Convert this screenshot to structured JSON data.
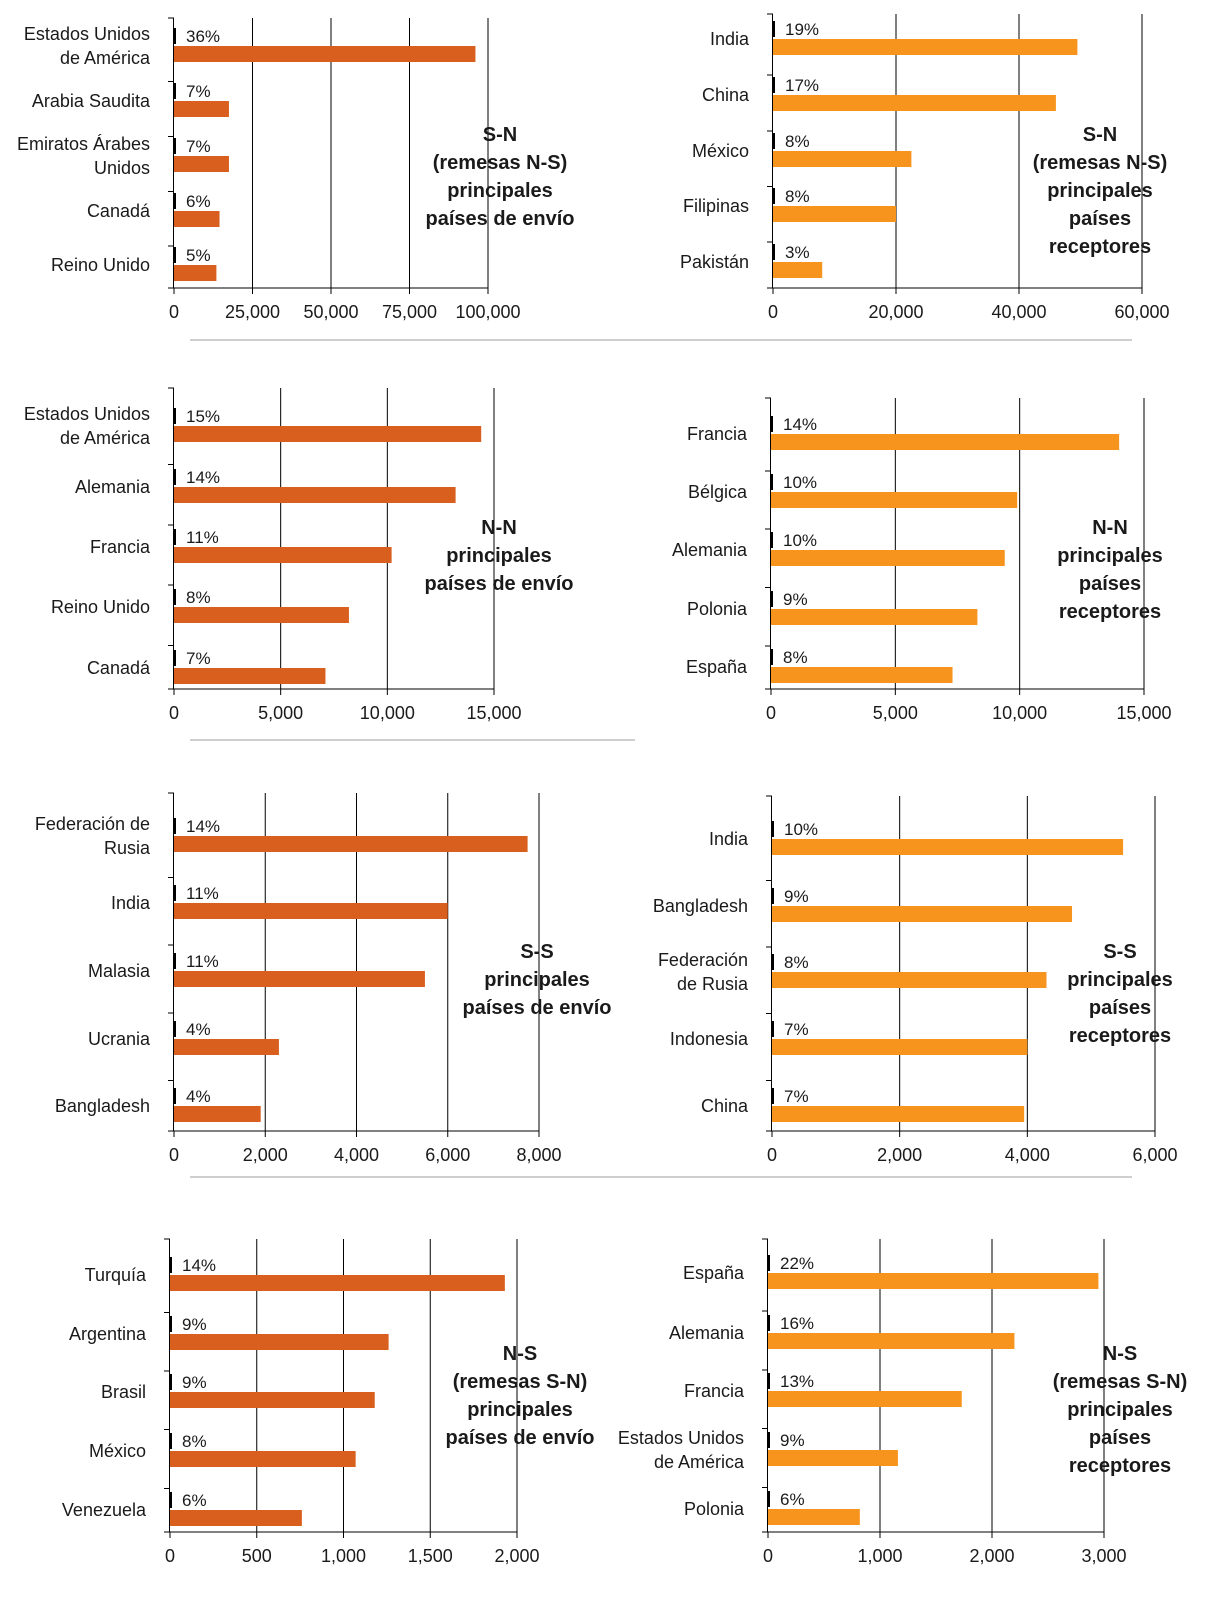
{
  "colors": {
    "envio": "#d95f1e",
    "receptores": "#f7941d"
  },
  "chart_data": [
    {
      "type": "bar",
      "title_lines": [
        "S-N",
        "(remesas N-S)",
        "principales",
        "países de envío"
      ],
      "categories": [
        [
          "Estados Unidos",
          "de América"
        ],
        [
          "Arabia Saudita"
        ],
        [
          "Emiratos Árabes",
          "Unidos"
        ],
        [
          "Canadá"
        ],
        [
          "Reino Unido"
        ]
      ],
      "values": [
        96000,
        17500,
        17500,
        14500,
        13500
      ],
      "labels": [
        "36%",
        "7%",
        "7%",
        "6%",
        "5%"
      ],
      "xlim": [
        0,
        100000
      ],
      "xticks": [
        0,
        25000,
        50000,
        75000,
        100000
      ],
      "xtick_labels": [
        "0",
        "25,000",
        "50,000",
        "75,000",
        "100,000"
      ],
      "color": "envio"
    },
    {
      "type": "bar",
      "title_lines": [
        "S-N",
        "(remesas N-S)",
        "principales",
        "países",
        "receptores"
      ],
      "categories": [
        [
          "India"
        ],
        [
          "China"
        ],
        [
          "México"
        ],
        [
          "Filipinas"
        ],
        [
          "Pakistán"
        ]
      ],
      "values": [
        49500,
        46000,
        22500,
        20000,
        8000
      ],
      "labels": [
        "19%",
        "17%",
        "8%",
        "8%",
        "3%"
      ],
      "xlim": [
        0,
        60000
      ],
      "xticks": [
        0,
        20000,
        40000,
        60000
      ],
      "xtick_labels": [
        "0",
        "20,000",
        "40,000",
        "60,000"
      ],
      "color": "receptores"
    },
    {
      "type": "bar",
      "title_lines": [
        "N-N",
        "principales",
        "países de envío"
      ],
      "categories": [
        [
          "Estados Unidos",
          "de América"
        ],
        [
          "Alemania"
        ],
        [
          "Francia"
        ],
        [
          "Reino Unido"
        ],
        [
          "Canadá"
        ]
      ],
      "values": [
        14400,
        13200,
        10200,
        8200,
        7100
      ],
      "labels": [
        "15%",
        "14%",
        "11%",
        "8%",
        "7%"
      ],
      "xlim": [
        0,
        15000
      ],
      "xticks": [
        0,
        5000,
        10000,
        15000
      ],
      "xtick_labels": [
        "0",
        "5,000",
        "10,000",
        "15,000"
      ],
      "color": "envio"
    },
    {
      "type": "bar",
      "title_lines": [
        "N-N",
        "principales",
        "países",
        "receptores"
      ],
      "categories": [
        [
          "Francia"
        ],
        [
          "Bélgica"
        ],
        [
          "Alemania"
        ],
        [
          "Polonia"
        ],
        [
          "España"
        ]
      ],
      "values": [
        14000,
        9900,
        9400,
        8300,
        7300
      ],
      "labels": [
        "14%",
        "10%",
        "10%",
        "9%",
        "8%"
      ],
      "xlim": [
        0,
        15000
      ],
      "xticks": [
        0,
        5000,
        10000,
        15000
      ],
      "xtick_labels": [
        "0",
        "5,000",
        "10,000",
        "15,000"
      ],
      "color": "receptores"
    },
    {
      "type": "bar",
      "title_lines": [
        "S-S",
        "principales",
        "países de envío"
      ],
      "categories": [
        [
          "Federación de",
          "Rusia"
        ],
        [
          "India"
        ],
        [
          "Malasia"
        ],
        [
          "Ucrania"
        ],
        [
          "Bangladesh"
        ]
      ],
      "values": [
        7750,
        6000,
        5500,
        2300,
        1900
      ],
      "labels": [
        "14%",
        "11%",
        "11%",
        "4%",
        "4%"
      ],
      "xlim": [
        0,
        8000
      ],
      "xticks": [
        0,
        2000,
        4000,
        6000,
        8000
      ],
      "xtick_labels": [
        "0",
        "2,000",
        "4,000",
        "6,000",
        "8,000"
      ],
      "color": "envio"
    },
    {
      "type": "bar",
      "title_lines": [
        "S-S",
        "principales",
        "países",
        "receptores"
      ],
      "categories": [
        [
          "India"
        ],
        [
          "Bangladesh"
        ],
        [
          "Federación",
          "de Rusia"
        ],
        [
          "Indonesia"
        ],
        [
          "China"
        ]
      ],
      "values": [
        5500,
        4700,
        4300,
        4000,
        3950
      ],
      "labels": [
        "10%",
        "9%",
        "8%",
        "7%",
        "7%"
      ],
      "xlim": [
        0,
        6000
      ],
      "xticks": [
        0,
        2000,
        4000,
        6000
      ],
      "xtick_labels": [
        "0",
        "2,000",
        "4,000",
        "6,000"
      ],
      "color": "receptores"
    },
    {
      "type": "bar",
      "title_lines": [
        "N-S",
        "(remesas S-N)",
        "principales",
        "países de envío"
      ],
      "categories": [
        [
          "Turquía"
        ],
        [
          "Argentina"
        ],
        [
          "Brasil"
        ],
        [
          "México"
        ],
        [
          "Venezuela"
        ]
      ],
      "values": [
        1930,
        1260,
        1180,
        1070,
        760
      ],
      "labels": [
        "14%",
        "9%",
        "9%",
        "8%",
        "6%"
      ],
      "xlim": [
        0,
        2000
      ],
      "xticks": [
        0,
        500,
        1000,
        1500,
        2000
      ],
      "xtick_labels": [
        "0",
        "500",
        "1,000",
        "1,500",
        "2,000"
      ],
      "color": "envio"
    },
    {
      "type": "bar",
      "title_lines": [
        "N-S",
        "(remesas S-N)",
        "principales",
        "países",
        "receptores"
      ],
      "categories": [
        [
          "España"
        ],
        [
          "Alemania"
        ],
        [
          "Francia"
        ],
        [
          "Estados Unidos",
          "de América"
        ],
        [
          "Polonia"
        ]
      ],
      "values": [
        2950,
        2200,
        1730,
        1160,
        820
      ],
      "labels": [
        "22%",
        "16%",
        "13%",
        "9%",
        "6%"
      ],
      "xlim": [
        0,
        3000
      ],
      "xticks": [
        0,
        1000,
        2000,
        3000
      ],
      "xtick_labels": [
        "0",
        "1,000",
        "2,000",
        "3,000"
      ],
      "color": "receptores"
    }
  ]
}
